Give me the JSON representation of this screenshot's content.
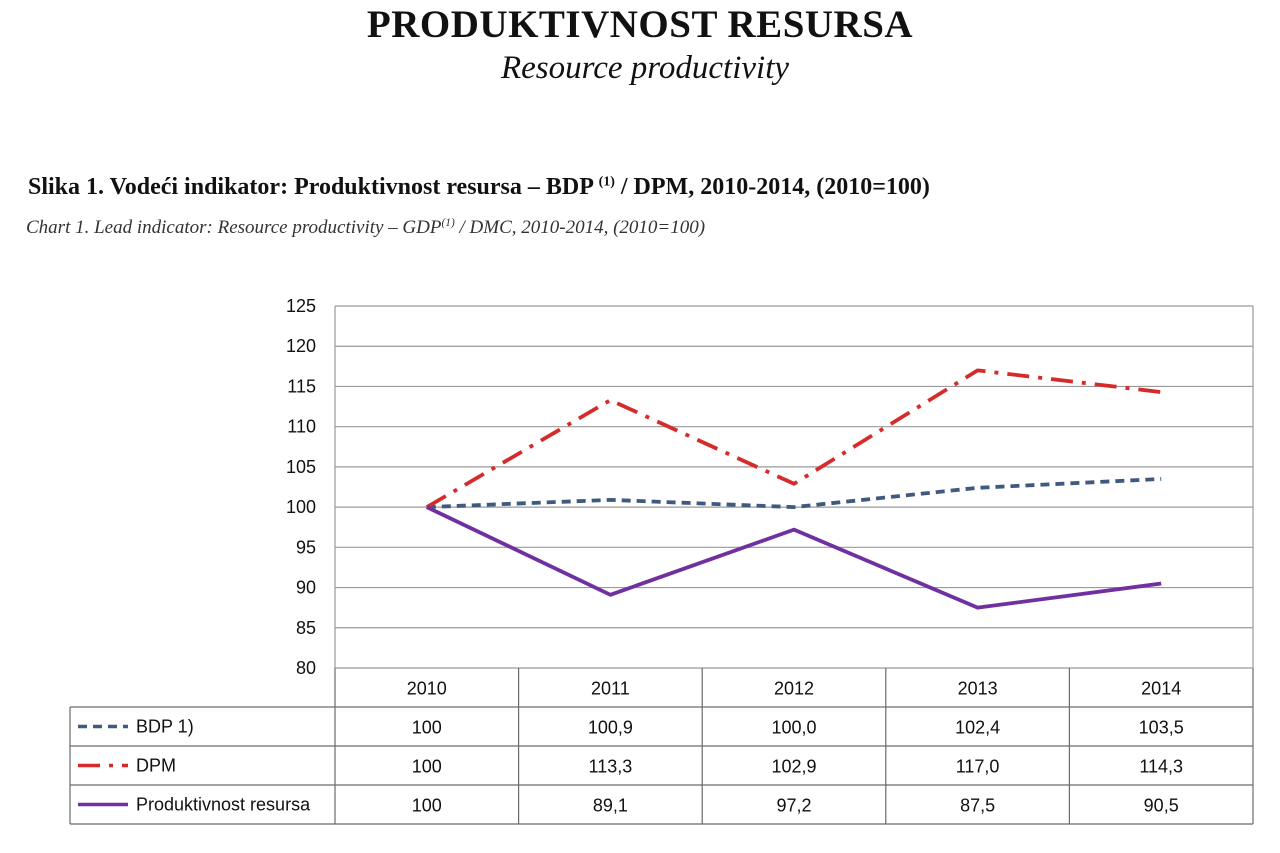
{
  "page": {
    "title": "PRODUKTIVNOST RESURSA",
    "subtitle": "Resource productivity"
  },
  "figure": {
    "caption_prefix": "Slika 1. Vodeći indikator: Produktivnost resursa – BDP",
    "caption_sup": "(1)",
    "caption_suffix": " / DPM, 2010-2014, (2010=100)",
    "caption_en_prefix": "Chart 1. Lead indicator: Resource productivity – GDP",
    "caption_en_sup": "(1)",
    "caption_en_suffix": " / DMC, 2010-2014, (2010=100)"
  },
  "chart_data": {
    "type": "line",
    "categories": [
      "2010",
      "2011",
      "2012",
      "2013",
      "2014"
    ],
    "ylim": [
      80,
      125
    ],
    "yticks": [
      80,
      85,
      90,
      95,
      100,
      105,
      110,
      115,
      120,
      125
    ],
    "grid": true,
    "legend": "data-table-left",
    "series": [
      {
        "name": "BDP  1)",
        "values": [
          100,
          100.9,
          100.0,
          102.4,
          103.5
        ],
        "labels": [
          "100",
          "100,9",
          "100,0",
          "102,4",
          "103,5"
        ],
        "color": "#3e5a7e",
        "style": "dashed"
      },
      {
        "name": "DPM",
        "values": [
          100,
          113.3,
          102.9,
          117.0,
          114.3
        ],
        "labels": [
          "100",
          "113,3",
          "102,9",
          "117,0",
          "114,3"
        ],
        "color": "#d52b2b",
        "style": "dash-dot"
      },
      {
        "name": "Produktivnost resursa",
        "values": [
          100,
          89.1,
          97.2,
          87.5,
          90.5
        ],
        "labels": [
          "100",
          "89,1",
          "97,2",
          "87,5",
          "90,5"
        ],
        "color": "#7030a0",
        "style": "solid"
      }
    ]
  }
}
